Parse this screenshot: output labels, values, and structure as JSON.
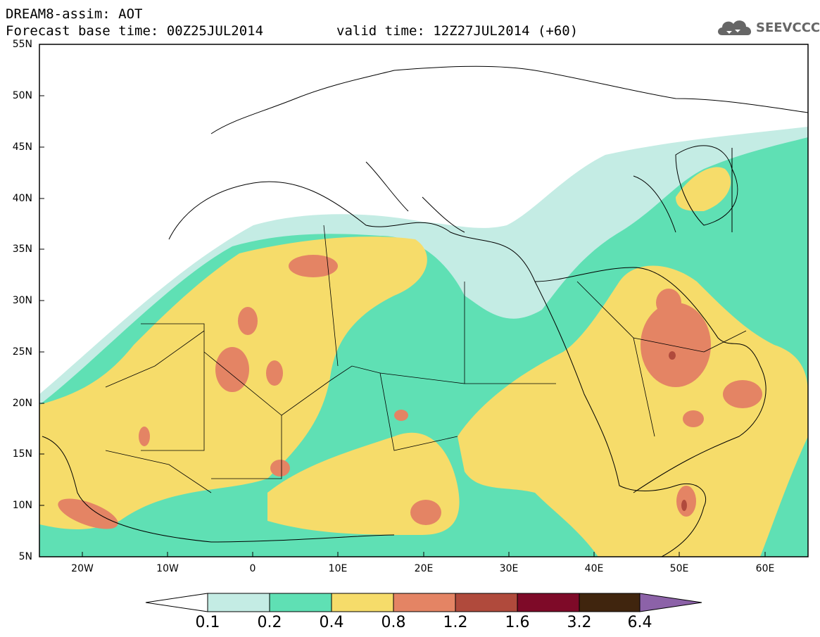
{
  "header": {
    "title_line1": "DREAM8-assim: AOT",
    "title_line2": "Forecast base time: 00Z25JUL2014",
    "valid_time": "valid time: 12Z27JUL2014 (+60)",
    "logo_text": "SEEVCCC"
  },
  "axes": {
    "lat_labels": [
      "55N",
      "50N",
      "45N",
      "40N",
      "35N",
      "30N",
      "25N",
      "20N",
      "15N",
      "10N",
      "5N"
    ],
    "lon_labels": [
      "20W",
      "10W",
      "0",
      "10E",
      "20E",
      "30E",
      "40E",
      "50E",
      "60E"
    ]
  },
  "colorbar": {
    "labels": [
      "0.1",
      "0.2",
      "0.4",
      "0.8",
      "1.2",
      "1.6",
      "3.2",
      "6.4"
    ],
    "colors": [
      "#c4ece4",
      "#5fe0b4",
      "#f6dc6a",
      "#e48464",
      "#b04a3c",
      "#7e0a28",
      "#40250e",
      "#8c62a8"
    ]
  },
  "colors": {
    "c1": "#c4ece4",
    "c2": "#5fe0b4",
    "c3": "#f6dc6a",
    "c4": "#e48464",
    "c5": "#b04a3c"
  }
}
